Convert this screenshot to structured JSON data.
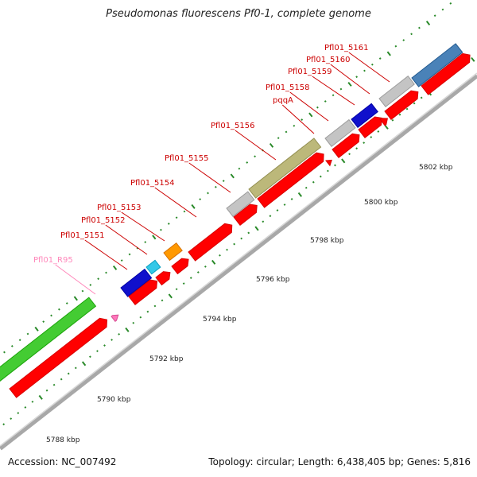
{
  "title": "Pseudomonas fluorescens Pf0-1, complete genome",
  "footer": {
    "accession": "Accession: NC_007492",
    "summary": "Topology: circular; Length: 6,438,405 bp; Genes: 5,816"
  },
  "colors": {
    "backbone": "#aaaaaa",
    "cds": "#ff0000",
    "cds_label": "#cc0000",
    "tick": "#2a8a2a",
    "rna_label": "#ff88bb"
  },
  "scale_labels": [
    "5788 kbp",
    "5790 kbp",
    "5792 kbp",
    "5794 kbp",
    "5796 kbp",
    "5798 kbp",
    "5800 kbp",
    "5802 kbp"
  ],
  "gene_labels": [
    {
      "text": "Pfl01_R95",
      "kind": "rna"
    },
    {
      "text": "Pfl01_5151",
      "kind": "cds"
    },
    {
      "text": "Pfl01_5152",
      "kind": "cds"
    },
    {
      "text": "Pfl01_5153",
      "kind": "cds"
    },
    {
      "text": "Pfl01_5154",
      "kind": "cds"
    },
    {
      "text": "Pfl01_5155",
      "kind": "cds"
    },
    {
      "text": "Pfl01_5156",
      "kind": "cds"
    },
    {
      "text": "pqqA",
      "kind": "cds"
    },
    {
      "text": "Pfl01_5158",
      "kind": "cds"
    },
    {
      "text": "Pfl01_5159",
      "kind": "cds"
    },
    {
      "text": "Pfl01_5160",
      "kind": "cds"
    },
    {
      "text": "Pfl01_5161",
      "kind": "cds"
    }
  ],
  "feature_colors": {
    "green": "#44cc33",
    "blue": "#1010cc",
    "cyan": "#33c8e8",
    "orange": "#ff9900",
    "gray": "#c4c4c4",
    "olive": "#bcb87a",
    "steelblue": "#4a82b8",
    "pink": "#ff77bb",
    "red": "#ff0000"
  }
}
